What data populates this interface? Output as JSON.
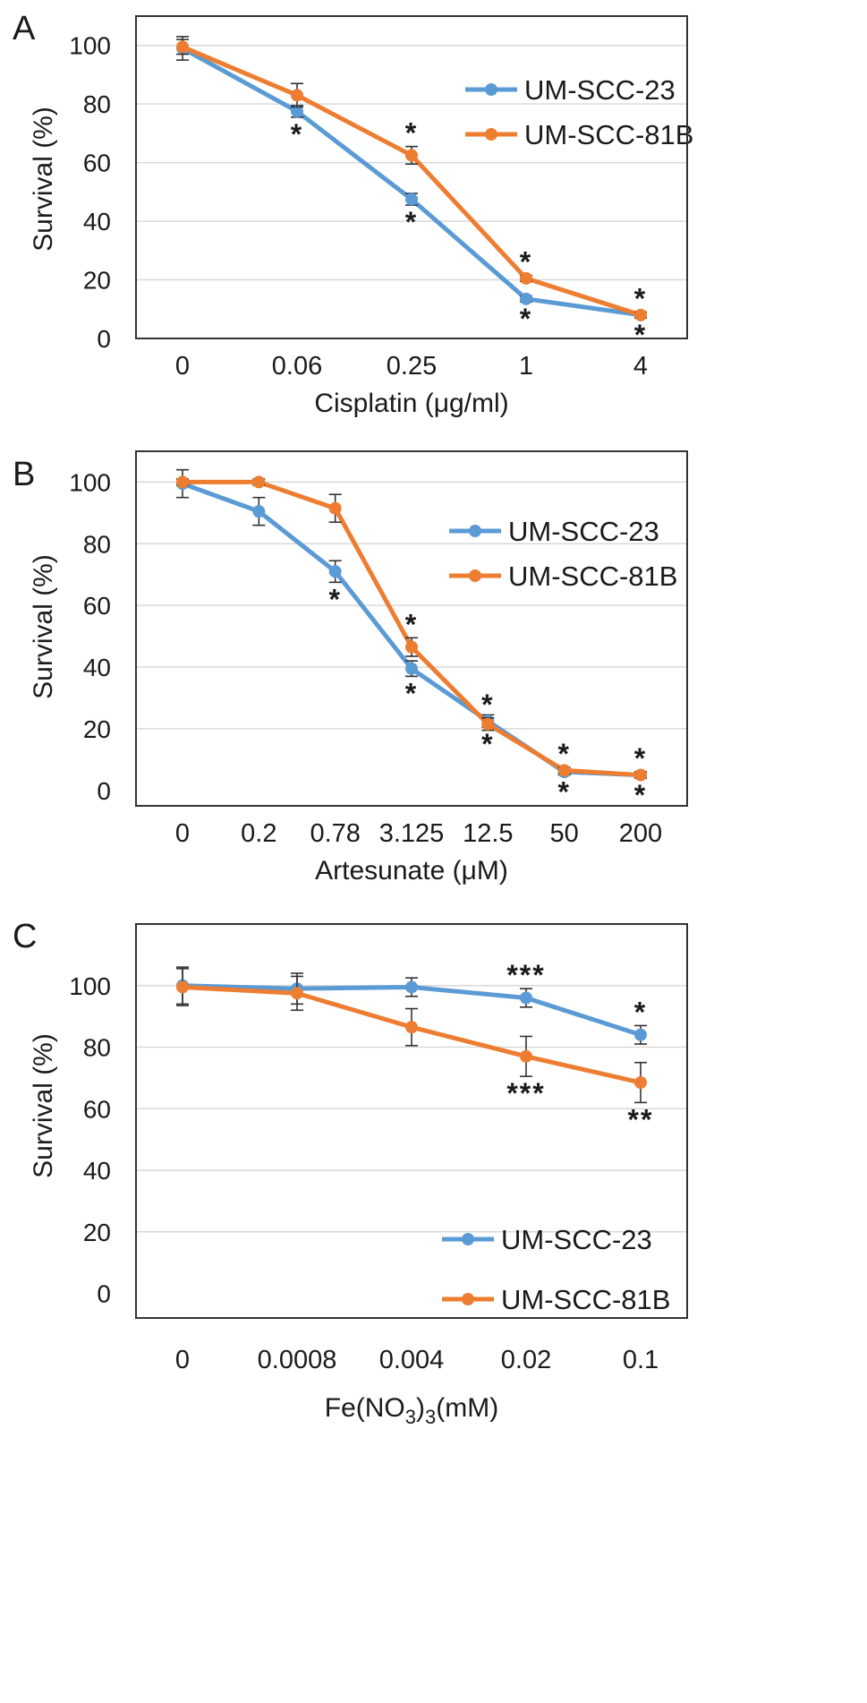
{
  "colors": {
    "series1": "#5B9BD5",
    "series2": "#ED7D31",
    "grid": "#D9D9D9",
    "axis": "#444444",
    "frame": "#333333",
    "error": "#333333"
  },
  "chart_data": [
    {
      "panel_label": "A",
      "type": "line",
      "title": "",
      "xlabel": "Cisplatin (μg/ml)",
      "ylabel": "Survival (%)",
      "categories": [
        "0",
        "0.06",
        "0.25",
        "1",
        "4"
      ],
      "ylim": [
        0,
        110
      ],
      "yticks": [
        0,
        20,
        40,
        60,
        80,
        100
      ],
      "grid": true,
      "legend": "top-right",
      "series": [
        {
          "name": "UM-SCC-23",
          "values": [
            99,
            77.5,
            47.5,
            13.5,
            8
          ],
          "errors": [
            4,
            2,
            2,
            1,
            1
          ],
          "marks": [
            {
              "i": 1,
              "side": "below",
              "text": "*"
            },
            {
              "i": 2,
              "side": "below",
              "text": "*"
            },
            {
              "i": 3,
              "side": "below",
              "text": "*"
            },
            {
              "i": 4,
              "side": "below",
              "text": "*"
            }
          ]
        },
        {
          "name": "UM-SCC-81B",
          "values": [
            99.5,
            83,
            62.5,
            20.5,
            8
          ],
          "errors": [
            2.5,
            4,
            3,
            1,
            1
          ],
          "marks": [
            {
              "i": 2,
              "side": "above",
              "text": "*"
            },
            {
              "i": 3,
              "side": "above",
              "text": "*"
            },
            {
              "i": 4,
              "side": "above",
              "text": "*"
            }
          ]
        }
      ]
    },
    {
      "panel_label": "B",
      "type": "line",
      "title": "",
      "xlabel": "Artesunate (μM)",
      "ylabel": "Survival (%)",
      "categories": [
        "0",
        "0.2",
        "0.78",
        "3.125",
        "12.5",
        "50",
        "200"
      ],
      "ylim": [
        -5,
        110
      ],
      "yticks": [
        0,
        20,
        40,
        60,
        80,
        100
      ],
      "grid": true,
      "legend": "top-right",
      "series": [
        {
          "name": "UM-SCC-23",
          "values": [
            99.5,
            90.5,
            71,
            39.5,
            22.5,
            6,
            5
          ],
          "errors": [
            4.5,
            4.5,
            3.5,
            2.5,
            2,
            1,
            1
          ],
          "marks": [
            {
              "i": 2,
              "side": "below",
              "text": "*"
            },
            {
              "i": 3,
              "side": "below",
              "text": "*"
            },
            {
              "i": 4,
              "side": "below",
              "text": "*"
            },
            {
              "i": 5,
              "side": "below",
              "text": "*"
            },
            {
              "i": 6,
              "side": "below",
              "text": "*"
            }
          ]
        },
        {
          "name": "UM-SCC-81B",
          "values": [
            100,
            100,
            91.5,
            46.5,
            21.5,
            6.5,
            5
          ],
          "errors": [
            1,
            1,
            4.5,
            3,
            2,
            1,
            1
          ],
          "marks": [
            {
              "i": 3,
              "side": "above",
              "text": "*"
            },
            {
              "i": 4,
              "side": "above",
              "text": "*"
            },
            {
              "i": 5,
              "side": "above",
              "text": "*"
            },
            {
              "i": 6,
              "side": "above",
              "text": "*"
            }
          ]
        }
      ]
    },
    {
      "panel_label": "C",
      "type": "line",
      "title": "",
      "xlabel": "Fe(NO3)3(mM)",
      "ylabel": "Survival (%)",
      "categories": [
        "0",
        "0.0008",
        "0.004",
        "0.02",
        "0.1"
      ],
      "ylim": [
        -8,
        120
      ],
      "yticks": [
        0,
        20,
        40,
        60,
        80,
        100
      ],
      "grid": true,
      "legend": "bottom-right",
      "series": [
        {
          "name": "UM-SCC-23",
          "values": [
            100,
            99,
            99.5,
            96,
            84
          ],
          "errors": [
            6,
            5,
            3,
            3,
            3
          ],
          "marks": [
            {
              "i": 3,
              "side": "above",
              "text": "***"
            },
            {
              "i": 4,
              "side": "above",
              "text": "*"
            }
          ]
        },
        {
          "name": "UM-SCC-81B",
          "values": [
            99.5,
            97.5,
            86.5,
            77,
            68.5
          ],
          "errors": [
            6,
            5.5,
            6,
            6.5,
            6.5
          ],
          "marks": [
            {
              "i": 3,
              "side": "below",
              "text": "***"
            },
            {
              "i": 4,
              "side": "below",
              "text": "**"
            }
          ]
        }
      ]
    }
  ]
}
